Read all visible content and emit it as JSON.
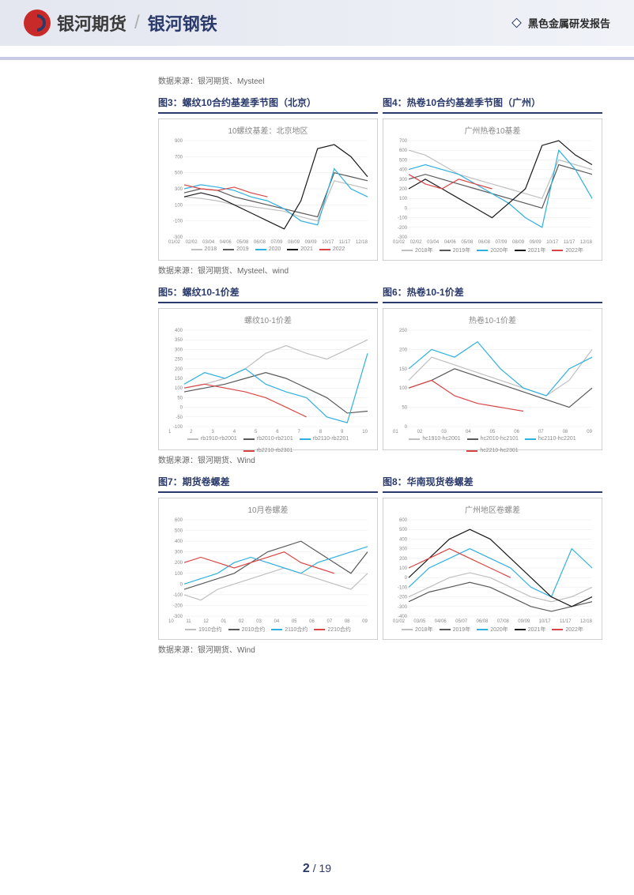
{
  "header": {
    "brand": "银河期货",
    "sub": "银河钢铁",
    "report_tag": "黑色金属研发报告"
  },
  "sources": {
    "s1": "数据来源：银河期货、Mysteel",
    "s2": "数据来源：银河期货、Mysteel、wind",
    "s3": "数据来源：银河期货、Wind",
    "s4": "数据来源：银河期货、Wind"
  },
  "charts": [
    {
      "caption": "图3：螺纹10合约基差季节图（北京）",
      "inner_title": "10螺纹基差：北京地区",
      "ylim": [
        -300,
        900
      ],
      "yticks": [
        -300,
        -100,
        100,
        300,
        500,
        700,
        900
      ],
      "xlabels": [
        "01/02",
        "02/02",
        "03/04",
        "04/06",
        "05/08",
        "06/08",
        "07/09",
        "08/09",
        "09/09",
        "10/17",
        "11/17",
        "12/18"
      ],
      "grid_color": "#e8e8e8",
      "bg": "#ffffff",
      "legend": [
        {
          "label": "2018",
          "color": "#bfbfbf"
        },
        {
          "label": "2019",
          "color": "#595959"
        },
        {
          "label": "2020",
          "color": "#2fb0e0"
        },
        {
          "label": "2021",
          "color": "#1a1a1a"
        },
        {
          "label": "2022",
          "color": "#d94545"
        }
      ],
      "series": {
        "2018": [
          200,
          180,
          150,
          100,
          80,
          50,
          20,
          -50,
          -100,
          400,
          350,
          300
        ],
        "2019": [
          250,
          300,
          280,
          200,
          150,
          100,
          50,
          0,
          -50,
          500,
          450,
          400
        ],
        "2020": [
          300,
          350,
          320,
          280,
          200,
          150,
          50,
          -100,
          -150,
          550,
          300,
          200
        ],
        "2021": [
          200,
          250,
          200,
          100,
          0,
          -100,
          -200,
          150,
          800,
          850,
          700,
          450
        ],
        "2022": [
          350,
          300,
          280,
          320,
          250,
          200,
          null,
          null,
          null,
          null,
          null,
          null
        ]
      }
    },
    {
      "caption": "图4：热卷10合约基差季节图（广州）",
      "inner_title": "广州热卷10基差",
      "ylim": [
        -300,
        700
      ],
      "yticks": [
        -300,
        -200,
        -100,
        0,
        100,
        200,
        300,
        400,
        500,
        600,
        700
      ],
      "xlabels": [
        "01/02",
        "02/02",
        "03/04",
        "04/06",
        "05/08",
        "06/08",
        "07/09",
        "08/09",
        "09/09",
        "10/17",
        "11/17",
        "12/18"
      ],
      "grid_color": "#e8e8e8",
      "bg": "#ffffff",
      "legend": [
        {
          "label": "2018年",
          "color": "#bfbfbf"
        },
        {
          "label": "2019年",
          "color": "#595959"
        },
        {
          "label": "2020年",
          "color": "#2fb0e0"
        },
        {
          "label": "2021年",
          "color": "#1a1a1a"
        },
        {
          "label": "2022年",
          "color": "#d94545"
        }
      ],
      "series": {
        "2018年": [
          600,
          550,
          450,
          350,
          300,
          250,
          200,
          150,
          100,
          500,
          450,
          400
        ],
        "2019年": [
          300,
          350,
          300,
          250,
          200,
          150,
          100,
          50,
          0,
          450,
          400,
          350
        ],
        "2020年": [
          400,
          450,
          400,
          350,
          250,
          150,
          50,
          -100,
          -200,
          600,
          400,
          100
        ],
        "2021年": [
          200,
          300,
          200,
          100,
          0,
          -100,
          50,
          200,
          650,
          700,
          550,
          450
        ],
        "2022年": [
          350,
          250,
          200,
          300,
          250,
          200,
          null,
          null,
          null,
          null,
          null,
          null
        ]
      }
    },
    {
      "caption": "图5：螺纹10-1价差",
      "inner_title": "螺纹10-1价差",
      "ylim": [
        -100,
        400
      ],
      "yticks": [
        -100,
        -50,
        0,
        50,
        100,
        150,
        200,
        250,
        300,
        350,
        400
      ],
      "xlabels": [
        "1",
        "2",
        "3",
        "4",
        "5",
        "6",
        "7",
        "8",
        "9",
        "10"
      ],
      "grid_color": "#e8e8e8",
      "bg": "#ffffff",
      "legend": [
        {
          "label": "rb1910-rb2001",
          "color": "#bfbfbf"
        },
        {
          "label": "rb2010-rb2101",
          "color": "#595959"
        },
        {
          "label": "rb2110-rb2201",
          "color": "#2fb0e0"
        },
        {
          "label": "rb2210-rb2301",
          "color": "#d94545"
        }
      ],
      "series": {
        "rb1910-rb2001": [
          100,
          120,
          150,
          200,
          280,
          320,
          280,
          250,
          300,
          350
        ],
        "rb2010-rb2101": [
          80,
          100,
          120,
          150,
          180,
          150,
          100,
          50,
          -30,
          -20
        ],
        "rb2110-rb2201": [
          120,
          180,
          150,
          200,
          120,
          80,
          50,
          -50,
          -80,
          280
        ],
        "rb2210-rb2301": [
          100,
          120,
          100,
          80,
          50,
          0,
          -50,
          null,
          null,
          null
        ]
      }
    },
    {
      "caption": "图6：热卷10-1价差",
      "inner_title": "热卷10-1价差",
      "ylim": [
        0,
        250
      ],
      "yticks": [
        0,
        50,
        100,
        150,
        200,
        250
      ],
      "xlabels": [
        "01",
        "02",
        "03",
        "04",
        "05",
        "06",
        "07",
        "08",
        "09"
      ],
      "grid_color": "#e8e8e8",
      "bg": "#ffffff",
      "legend": [
        {
          "label": "hc1910-hc2001",
          "color": "#bfbfbf"
        },
        {
          "label": "hc2010-hc2101",
          "color": "#595959"
        },
        {
          "label": "hc2110-hc2201",
          "color": "#2fb0e0"
        },
        {
          "label": "hc2210-hc2301",
          "color": "#d94545"
        }
      ],
      "series": {
        "hc1910-hc2001": [
          120,
          180,
          160,
          140,
          120,
          100,
          80,
          120,
          200
        ],
        "hc2010-hc2101": [
          100,
          120,
          150,
          130,
          110,
          90,
          70,
          50,
          100
        ],
        "hc2110-hc2201": [
          150,
          200,
          180,
          220,
          150,
          100,
          80,
          150,
          180
        ],
        "hc2210-hc2301": [
          100,
          120,
          80,
          60,
          50,
          40,
          null,
          null,
          null
        ]
      }
    },
    {
      "caption": "图7：期货卷螺差",
      "inner_title": "10月卷螺差",
      "ylim": [
        -300,
        600
      ],
      "yticks": [
        -300,
        -200,
        -100,
        0,
        100,
        200,
        300,
        400,
        500,
        600
      ],
      "xlabels": [
        "10",
        "11",
        "12",
        "01",
        "02",
        "03",
        "04",
        "05",
        "06",
        "07",
        "08",
        "09"
      ],
      "grid_color": "#e8e8e8",
      "bg": "#ffffff",
      "legend": [
        {
          "label": "1910合约",
          "color": "#bfbfbf"
        },
        {
          "label": "2010合约",
          "color": "#595959"
        },
        {
          "label": "2110合约",
          "color": "#2fb0e0"
        },
        {
          "label": "2210合约",
          "color": "#d94545"
        }
      ],
      "series": {
        "1910合约": [
          -100,
          -150,
          -50,
          0,
          50,
          100,
          150,
          100,
          50,
          0,
          -50,
          100
        ],
        "2010合约": [
          -50,
          0,
          50,
          100,
          200,
          300,
          350,
          400,
          300,
          200,
          100,
          300
        ],
        "2110合约": [
          0,
          50,
          100,
          200,
          250,
          200,
          150,
          100,
          200,
          250,
          300,
          350
        ],
        "2210合约": [
          200,
          250,
          200,
          150,
          200,
          250,
          300,
          200,
          150,
          100,
          null,
          null
        ]
      }
    },
    {
      "caption": "图8：华南现货卷螺差",
      "inner_title": "广州地区卷螺差",
      "ylim": [
        -400,
        600
      ],
      "yticks": [
        -400,
        -300,
        -200,
        -100,
        0,
        100,
        200,
        300,
        400,
        500,
        600
      ],
      "xlabels": [
        "01/02",
        "03/05",
        "04/06",
        "05/07",
        "06/08",
        "07/08",
        "09/09",
        "10/17",
        "11/17",
        "12/18"
      ],
      "grid_color": "#e8e8e8",
      "bg": "#ffffff",
      "legend": [
        {
          "label": "2018年",
          "color": "#bfbfbf"
        },
        {
          "label": "2019年",
          "color": "#595959"
        },
        {
          "label": "2020年",
          "color": "#2fb0e0"
        },
        {
          "label": "2021年",
          "color": "#1a1a1a"
        },
        {
          "label": "2022年",
          "color": "#d94545"
        }
      ],
      "series": {
        "2018年": [
          -200,
          -100,
          0,
          50,
          0,
          -100,
          -200,
          -250,
          -200,
          -100
        ],
        "2019年": [
          -250,
          -150,
          -100,
          -50,
          -100,
          -200,
          -300,
          -350,
          -300,
          -250
        ],
        "2020年": [
          -100,
          100,
          200,
          300,
          200,
          100,
          -100,
          -200,
          300,
          100
        ],
        "2021年": [
          0,
          200,
          400,
          500,
          400,
          200,
          0,
          -200,
          -300,
          -200
        ],
        "2022年": [
          100,
          200,
          300,
          200,
          100,
          0,
          null,
          null,
          null,
          null
        ]
      }
    }
  ],
  "footer": {
    "current": "2",
    "sep": " / ",
    "total": "19"
  }
}
